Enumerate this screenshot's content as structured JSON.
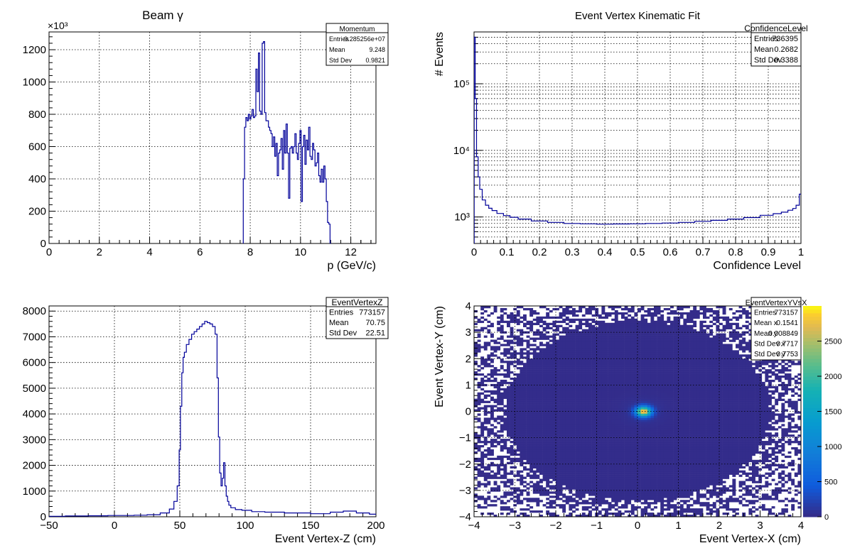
{
  "chart_data": [
    {
      "type": "histogram",
      "title": "Beam γ",
      "xlabel": "p (GeV/c)",
      "ylabel": "",
      "y_multiplier": "×10³",
      "xlim": [
        0,
        13
      ],
      "ylim": [
        0,
        1310
      ],
      "x_ticks": [
        0,
        2,
        4,
        6,
        8,
        10,
        12
      ],
      "y_ticks": [
        0,
        200,
        400,
        600,
        800,
        1000,
        1200
      ],
      "grid": true,
      "color": "#000099",
      "stats": {
        "title": "Momentum",
        "rows": [
          {
            "label": "Entries",
            "value": "9.285256e+07"
          },
          {
            "label": "Mean",
            "value": "9.248"
          },
          {
            "label": "Std Dev",
            "value": "0.9821"
          }
        ]
      },
      "x": [
        7.75,
        7.8,
        7.85,
        7.9,
        7.95,
        8.0,
        8.05,
        8.1,
        8.15,
        8.2,
        8.25,
        8.3,
        8.35,
        8.4,
        8.45,
        8.5,
        8.55,
        8.6,
        8.65,
        8.7,
        8.75,
        8.8,
        8.85,
        8.9,
        8.95,
        9.0,
        9.05,
        9.1,
        9.15,
        9.2,
        9.25,
        9.3,
        9.35,
        9.4,
        9.45,
        9.5,
        9.55,
        9.6,
        9.65,
        9.7,
        9.75,
        9.8,
        9.85,
        9.9,
        9.95,
        10.0,
        10.05,
        10.1,
        10.15,
        10.2,
        10.25,
        10.3,
        10.35,
        10.4,
        10.45,
        10.5,
        10.55,
        10.6,
        10.65,
        10.7,
        10.75,
        10.8,
        10.85,
        10.9,
        10.95,
        11.0,
        11.05,
        11.1,
        11.15,
        11.2
      ],
      "values": [
        400,
        720,
        780,
        760,
        800,
        770,
        790,
        830,
        780,
        790,
        1080,
        940,
        1180,
        820,
        800,
        1240,
        1250,
        810,
        760,
        760,
        720,
        700,
        680,
        600,
        660,
        540,
        620,
        420,
        560,
        580,
        650,
        460,
        700,
        560,
        740,
        560,
        280,
        590,
        600,
        560,
        600,
        680,
        560,
        520,
        620,
        700,
        260,
        600,
        670,
        490,
        640,
        580,
        720,
        540,
        520,
        620,
        580,
        480,
        500,
        560,
        420,
        380,
        460,
        380,
        480,
        400,
        260,
        130,
        120,
        0
      ]
    },
    {
      "type": "histogram",
      "title": "Event Vertex Kinematic Fit",
      "xlabel": "Confidence Level",
      "ylabel": "# Events",
      "xlim": [
        0,
        1
      ],
      "ylim": [
        400,
        600000
      ],
      "yscale": "log",
      "x_ticks": [
        0,
        0.1,
        0.2,
        0.3,
        0.4,
        0.5,
        0.6,
        0.7,
        0.8,
        0.9,
        1
      ],
      "y_major_ticks": [
        1000,
        10000,
        100000
      ],
      "y_tick_labels": [
        "10³",
        "10⁴",
        "10⁵"
      ],
      "grid": true,
      "color": "#000099",
      "stats": {
        "title": "ConfidenceLevel",
        "rows": [
          {
            "label": "Entries",
            "value": "736395"
          },
          {
            "label": "Mean",
            "value": "0.2682"
          },
          {
            "label": "Std Dev",
            "value": "0.3388"
          }
        ]
      },
      "x": [
        0.002,
        0.005,
        0.01,
        0.015,
        0.02,
        0.03,
        0.04,
        0.05,
        0.06,
        0.08,
        0.1,
        0.12,
        0.15,
        0.2,
        0.25,
        0.3,
        0.35,
        0.4,
        0.45,
        0.5,
        0.55,
        0.6,
        0.65,
        0.7,
        0.75,
        0.8,
        0.85,
        0.9,
        0.93,
        0.95,
        0.97,
        0.98,
        0.99,
        1.0
      ],
      "values": [
        500000,
        60000,
        8000,
        4000,
        2600,
        1800,
        1500,
        1350,
        1250,
        1130,
        1050,
        990,
        930,
        870,
        830,
        800,
        790,
        780,
        785,
        790,
        800,
        810,
        830,
        860,
        890,
        930,
        980,
        1060,
        1120,
        1180,
        1260,
        1340,
        1500,
        2200
      ]
    },
    {
      "type": "histogram",
      "title": "",
      "xlabel": "Event Vertex-Z (cm)",
      "ylabel": "",
      "xlim": [
        -50,
        200
      ],
      "ylim": [
        0,
        8200
      ],
      "x_ticks": [
        -50,
        0,
        50,
        100,
        150,
        200
      ],
      "y_ticks": [
        0,
        1000,
        2000,
        3000,
        4000,
        5000,
        6000,
        7000,
        8000
      ],
      "grid": true,
      "color": "#000099",
      "stats": {
        "title": "EventVertexZ",
        "rows": [
          {
            "label": "Entries",
            "value": "773157"
          },
          {
            "label": "Mean",
            "value": "70.75"
          },
          {
            "label": "Std Dev",
            "value": "22.51"
          }
        ]
      },
      "x": [
        -45,
        -30,
        -10,
        0,
        10,
        20,
        30,
        40,
        44,
        47,
        49,
        50,
        51,
        52,
        53,
        54,
        56,
        58,
        60,
        62,
        64,
        66,
        68,
        70,
        72,
        74,
        76,
        78,
        79,
        80,
        81,
        82,
        83,
        84,
        85,
        86,
        87,
        88,
        90,
        95,
        100,
        110,
        120,
        140,
        160,
        170,
        180,
        190,
        200
      ],
      "values": [
        20,
        30,
        40,
        50,
        50,
        60,
        80,
        150,
        300,
        600,
        1200,
        2600,
        4300,
        5600,
        6200,
        6400,
        6700,
        6900,
        7100,
        7200,
        7300,
        7400,
        7500,
        7600,
        7550,
        7500,
        7400,
        7100,
        5400,
        3100,
        1700,
        1200,
        1500,
        2100,
        1200,
        800,
        600,
        450,
        350,
        280,
        250,
        200,
        180,
        150,
        120,
        180,
        220,
        150,
        100
      ]
    },
    {
      "type": "heatmap",
      "title": "",
      "xlabel": "Event Vertex-X (cm)",
      "ylabel": "Event Vertex-Y (cm)",
      "xlim": [
        -4,
        4
      ],
      "ylim": [
        -4,
        4
      ],
      "x_ticks": [
        -4,
        -3,
        -2,
        -1,
        0,
        1,
        2,
        3,
        4
      ],
      "y_ticks": [
        -4,
        -3,
        -2,
        -1,
        0,
        1,
        2,
        3,
        4
      ],
      "z_range": [
        0,
        3000
      ],
      "z_ticks": [
        0,
        500,
        1000,
        1500,
        2000,
        2500
      ],
      "peak": {
        "x": 0.15,
        "y": 0.0,
        "value": 2900
      },
      "grid": true,
      "stats": {
        "title": "EventVertexYVsX",
        "rows": [
          {
            "label": "Entries",
            "value": "773157"
          },
          {
            "label": "Mean x",
            "value": "0.1541"
          },
          {
            "label": "Mean y",
            "value": "0.008849"
          },
          {
            "label": "Std Dev x",
            "value": "0.7717"
          },
          {
            "label": "Std Dev y",
            "value": "0.7753"
          }
        ]
      }
    }
  ]
}
